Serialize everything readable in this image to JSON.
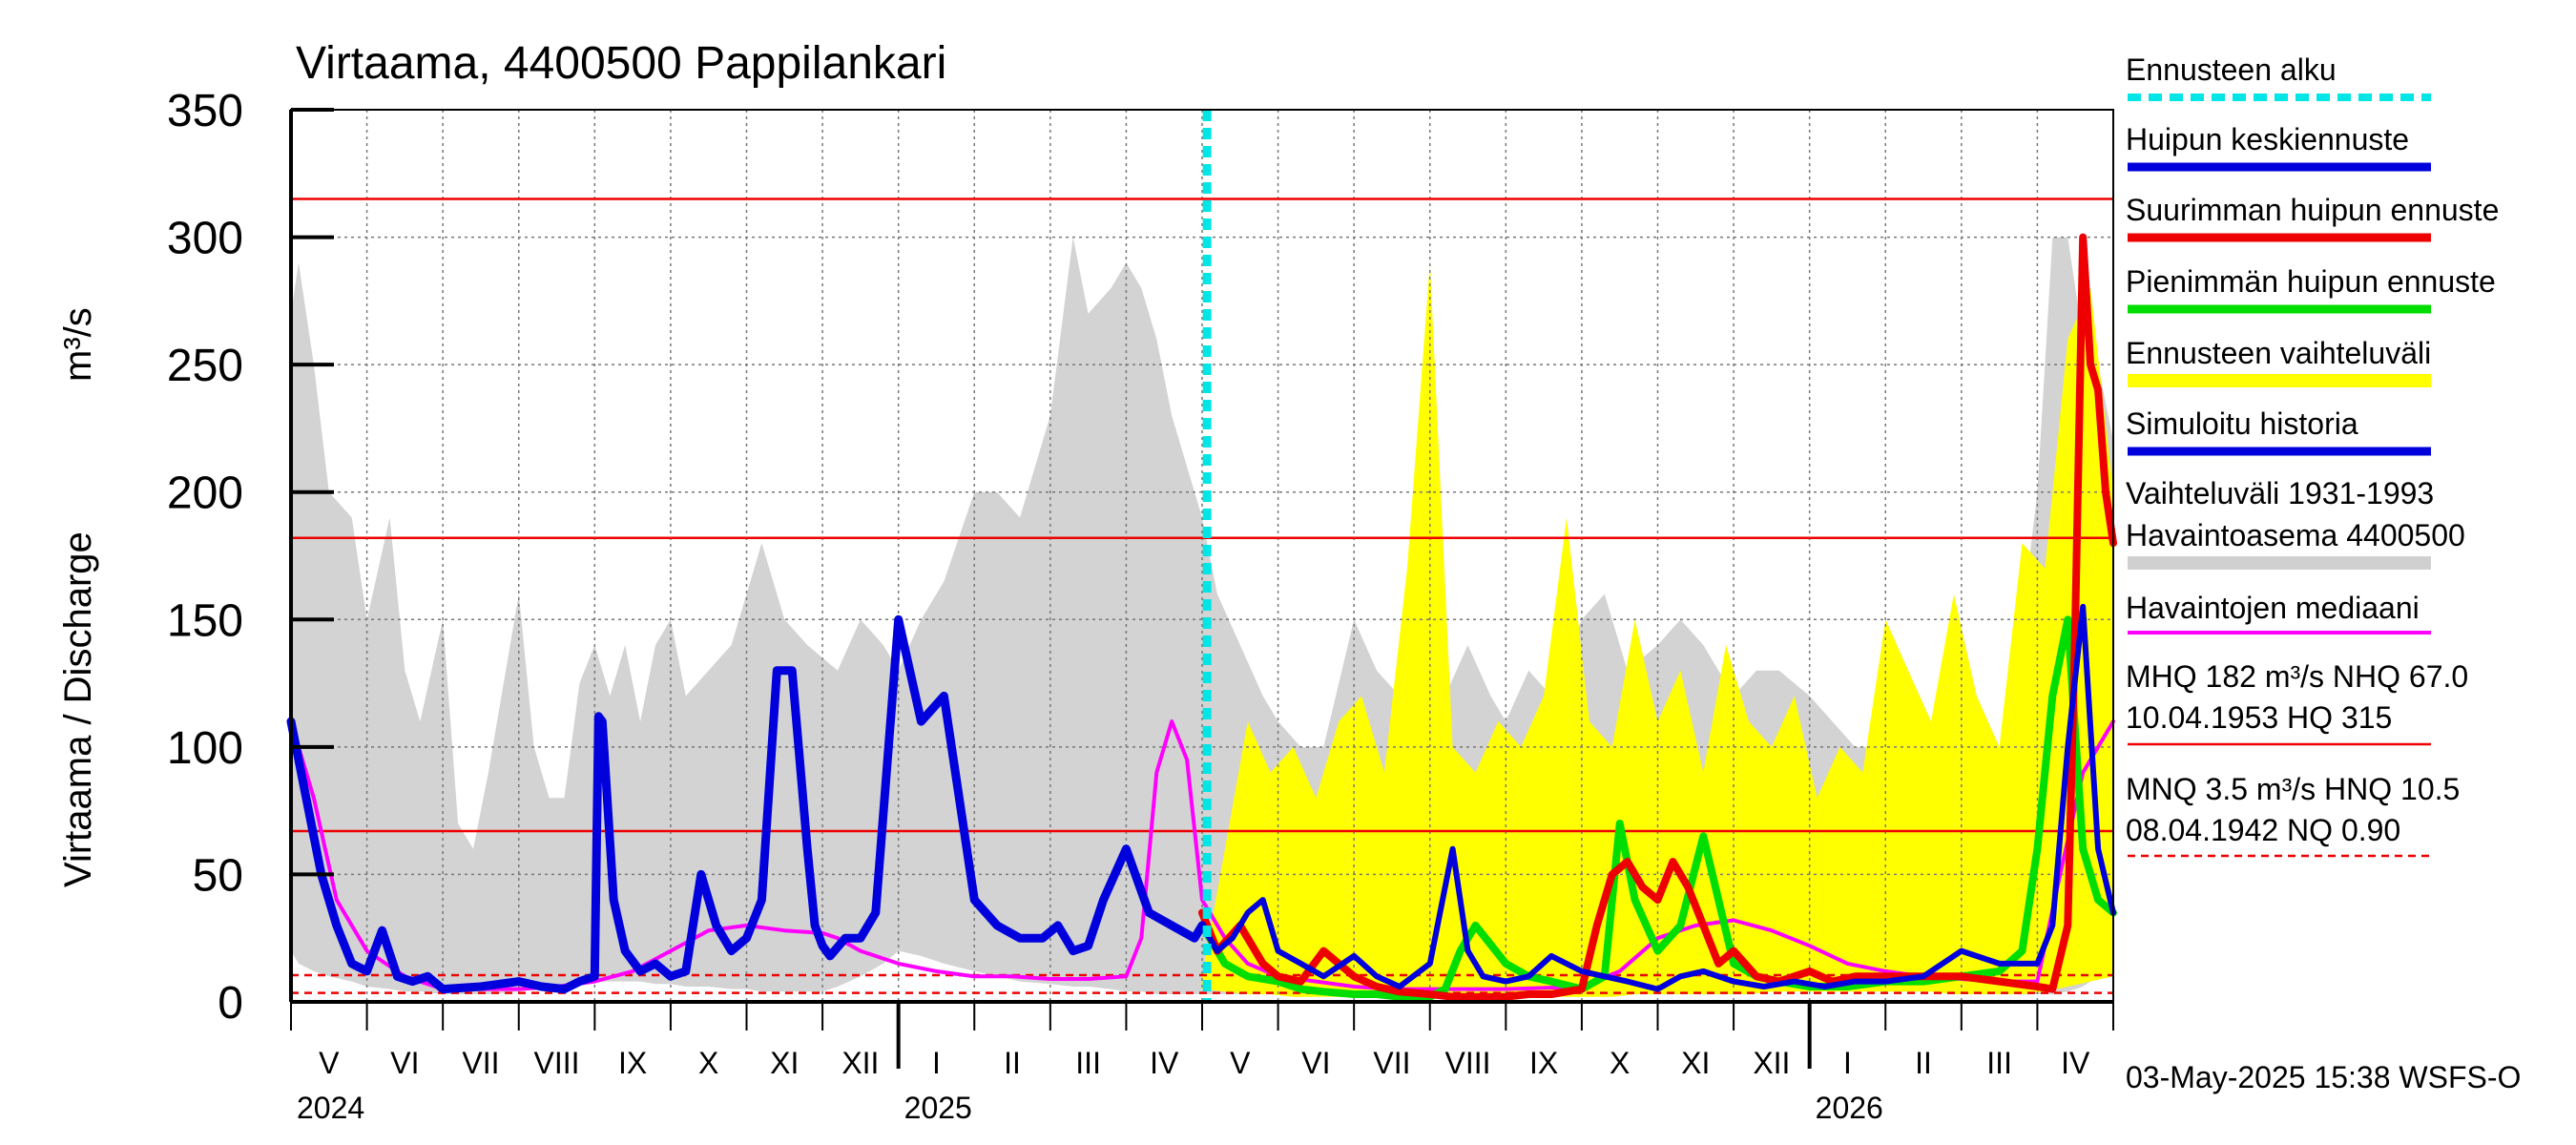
{
  "chart_data": {
    "type": "area",
    "title": "Virtaama, 4400500 Pappilankari",
    "ylabel": "Virtaama / Discharge",
    "yunit": "m³/s",
    "ylim": [
      0,
      350
    ],
    "yticks": [
      0,
      50,
      100,
      150,
      200,
      250,
      300,
      350
    ],
    "months": [
      "V",
      "VI",
      "VII",
      "VIII",
      "IX",
      "X",
      "XI",
      "XII",
      "I",
      "II",
      "III",
      "IV",
      "V",
      "VI",
      "VII",
      "VIII",
      "IX",
      "X",
      "XI",
      "XII",
      "I",
      "II",
      "III",
      "IV"
    ],
    "years": [
      "2024",
      "2025",
      "2026"
    ],
    "forecast_start": "2025-05-03",
    "grid": true,
    "legend_position": "right",
    "reference_lines": {
      "HQ": 315,
      "MHQ": 182,
      "NHQ": 67.0,
      "HNQ": 10.5,
      "MNQ": 3.5,
      "NQ": 0.9
    },
    "legend": [
      {
        "label": "Ennusteen alku",
        "color": "#00e5e5",
        "style": "dashed"
      },
      {
        "label": "Huipun keskiennuste",
        "color": "#0000dd",
        "style": "solid"
      },
      {
        "label": "Suurimman huipun ennuste",
        "color": "#ee0000",
        "style": "solid"
      },
      {
        "label": "Pienimmän huipun ennuste",
        "color": "#00dd00",
        "style": "solid"
      },
      {
        "label": "Ennusteen vaihteluväli",
        "color": "#ffff00",
        "style": "solid"
      },
      {
        "label": "Simuloitu historia",
        "color": "#0000dd",
        "style": "solid"
      },
      {
        "label": "Vaihteluväli 1931-1993",
        "label2": " Havaintoasema 4400500",
        "color": "#d0d0d0",
        "style": "solid"
      },
      {
        "label": "Havaintojen mediaani",
        "color": "#ff00ff",
        "style": "solid"
      },
      {
        "label": "MHQ  182 m³/s NHQ 67.0",
        "label2": "10.04.1953 HQ  315",
        "color": "#ee0000",
        "style": "solid"
      },
      {
        "label": "MNQ  3.5 m³/s HNQ 10.5",
        "label2": "08.04.1942 NQ 0.90",
        "color": "#ee0000",
        "style": "dashed"
      }
    ],
    "series": {
      "range_hist": {
        "months": [
          0,
          0.1,
          0.3,
          0.5,
          0.8,
          1,
          1.3,
          1.5,
          1.7,
          2,
          2.2,
          2.4,
          2.6,
          3,
          3.2,
          3.4,
          3.6,
          3.8,
          4,
          4.2,
          4.4,
          4.6,
          4.8,
          5,
          5.2,
          5.5,
          5.8,
          6,
          6.2,
          6.5,
          6.8,
          7,
          7.2,
          7.5,
          7.8,
          8,
          8.3,
          8.6,
          9,
          9.3,
          9.6,
          10,
          10.3,
          10.5,
          10.8,
          11,
          11.2,
          11.4,
          11.6,
          11.8,
          12,
          12.2,
          12.5,
          12.8,
          13,
          13.3,
          13.6,
          14,
          14.3,
          14.6,
          15,
          15.2,
          15.5,
          15.8,
          16,
          16.3,
          16.6,
          17,
          17.3,
          17.6,
          18,
          18.3,
          18.6,
          19,
          19.3,
          19.6,
          20,
          20.3,
          20.6,
          21,
          21.3,
          21.6,
          22,
          22.3,
          22.6,
          23,
          23.2,
          23.4,
          23.6,
          23.8,
          24
        ],
        "high": [
          270,
          290,
          250,
          200,
          190,
          150,
          190,
          130,
          110,
          150,
          70,
          60,
          90,
          160,
          100,
          80,
          80,
          125,
          140,
          120,
          140,
          110,
          140,
          150,
          120,
          130,
          140,
          160,
          180,
          150,
          140,
          135,
          130,
          150,
          140,
          130,
          150,
          165,
          200,
          200,
          190,
          230,
          300,
          270,
          280,
          290,
          280,
          260,
          230,
          210,
          190,
          160,
          140,
          120,
          110,
          100,
          100,
          150,
          130,
          120,
          100,
          120,
          140,
          120,
          110,
          130,
          120,
          150,
          160,
          130,
          140,
          150,
          140,
          120,
          130,
          130,
          120,
          110,
          100,
          100,
          90,
          90,
          60,
          80,
          100,
          200,
          300,
          300,
          260,
          250,
          220
        ],
        "low": [
          20,
          15,
          12,
          10,
          8,
          6,
          5,
          4,
          4,
          3,
          3,
          3,
          3,
          4,
          5,
          6,
          6,
          7,
          8,
          8,
          8,
          8,
          7,
          7,
          6,
          6,
          5,
          5,
          4,
          4,
          4,
          4,
          6,
          10,
          15,
          20,
          18,
          15,
          12,
          10,
          8,
          7,
          6,
          6,
          5,
          4,
          4,
          3,
          3,
          3,
          3,
          3,
          3,
          4,
          5,
          6,
          6,
          7,
          8,
          8,
          8,
          8,
          7,
          7,
          6,
          6,
          5,
          5,
          4,
          4,
          4,
          4,
          5,
          6,
          10,
          15,
          15,
          15,
          10,
          10,
          6,
          5,
          4,
          3,
          3,
          3,
          3,
          4,
          6,
          10,
          15
        ]
      },
      "range_forecast": {
        "months": [
          12,
          12.3,
          12.6,
          12.9,
          13.2,
          13.5,
          13.8,
          14.1,
          14.4,
          14.7,
          15,
          15.3,
          15.6,
          15.9,
          16.2,
          16.5,
          16.8,
          17.1,
          17.4,
          17.7,
          18,
          18.3,
          18.6,
          18.9,
          19.2,
          19.5,
          19.8,
          20.1,
          20.4,
          20.7,
          21,
          21.3,
          21.6,
          21.9,
          22.2,
          22.5,
          22.8,
          23.1,
          23.4,
          23.7,
          24
        ],
        "high": [
          10,
          60,
          110,
          90,
          100,
          80,
          110,
          120,
          90,
          170,
          290,
          100,
          90,
          110,
          100,
          120,
          190,
          110,
          100,
          150,
          110,
          130,
          90,
          140,
          110,
          100,
          120,
          80,
          100,
          90,
          150,
          130,
          110,
          160,
          120,
          100,
          180,
          170,
          260,
          280,
          200
        ],
        "low": [
          5,
          4,
          3,
          3,
          2,
          2,
          2,
          2,
          2,
          2,
          2,
          2,
          2,
          2,
          2,
          2,
          2,
          2,
          2,
          3,
          3,
          3,
          3,
          3,
          3,
          4,
          4,
          4,
          4,
          4,
          4,
          4,
          4,
          3,
          3,
          3,
          3,
          4,
          6,
          8,
          10
        ]
      },
      "simulated_history": {
        "months": [
          0,
          0.2,
          0.4,
          0.6,
          0.8,
          1,
          1.2,
          1.4,
          1.6,
          1.8,
          2,
          2.5,
          3,
          3.3,
          3.6,
          3.8,
          4,
          4.05,
          4.1,
          4.25,
          4.4,
          4.6,
          4.8,
          5,
          5.2,
          5.4,
          5.6,
          5.8,
          6,
          6.2,
          6.4,
          6.6,
          6.8,
          6.9,
          7,
          7.1,
          7.3,
          7.5,
          7.7,
          8,
          8.3,
          8.6,
          9,
          9.3,
          9.6,
          9.9,
          10.1,
          10.3,
          10.5,
          10.7,
          11,
          11.3,
          11.6,
          11.9,
          12
        ],
        "values": [
          110,
          80,
          50,
          30,
          15,
          12,
          28,
          10,
          8,
          10,
          5,
          6,
          8,
          6,
          5,
          8,
          10,
          112,
          110,
          40,
          20,
          12,
          15,
          10,
          12,
          50,
          30,
          20,
          25,
          40,
          130,
          130,
          60,
          30,
          22,
          18,
          25,
          25,
          35,
          150,
          110,
          120,
          40,
          30,
          25,
          25,
          30,
          20,
          22,
          40,
          60,
          35,
          30,
          25,
          30
        ]
      },
      "median": {
        "months": [
          0,
          0.3,
          0.6,
          1,
          1.5,
          2,
          3,
          3.5,
          4,
          4.5,
          5,
          5.5,
          6,
          6.5,
          7,
          7.2,
          7.5,
          8,
          8.5,
          9,
          9.5,
          10,
          10.5,
          11,
          11.2,
          11.4,
          11.6,
          11.8,
          12,
          12.3,
          12.6,
          13,
          13.5,
          14,
          14.5,
          15,
          16,
          17,
          17.5,
          18,
          18.5,
          19,
          19.5,
          20,
          20.5,
          21,
          21.5,
          22,
          22.5,
          23,
          23.3,
          23.6,
          24
        ],
        "values": [
          110,
          80,
          40,
          20,
          10,
          5,
          5,
          6,
          8,
          12,
          20,
          28,
          30,
          28,
          27,
          25,
          20,
          15,
          12,
          10,
          10,
          9,
          9,
          10,
          25,
          90,
          110,
          95,
          40,
          25,
          15,
          10,
          8,
          6,
          5,
          5,
          5,
          6,
          12,
          25,
          30,
          32,
          28,
          22,
          15,
          12,
          10,
          9,
          8,
          8,
          50,
          90,
          110
        ]
      },
      "forecast_mean": {
        "months": [
          12,
          12.2,
          12.4,
          12.6,
          12.8,
          13,
          13.3,
          13.6,
          14,
          14.3,
          14.6,
          15,
          15.3,
          15.5,
          15.7,
          16,
          16.3,
          16.6,
          17,
          17.3,
          17.6,
          18,
          18.3,
          18.6,
          19,
          19.4,
          19.8,
          20.2,
          20.6,
          21,
          21.5,
          22,
          22.5,
          23,
          23.2,
          23.4,
          23.6,
          23.8,
          24
        ],
        "values": [
          30,
          20,
          25,
          35,
          40,
          20,
          15,
          10,
          18,
          10,
          6,
          15,
          60,
          20,
          10,
          8,
          10,
          18,
          12,
          10,
          8,
          5,
          10,
          12,
          8,
          6,
          8,
          6,
          8,
          8,
          10,
          20,
          15,
          15,
          30,
          100,
          155,
          60,
          35
        ]
      },
      "forecast_max": {
        "months": [
          12,
          12.2,
          12.5,
          12.8,
          13,
          13.3,
          13.6,
          14,
          14.3,
          14.6,
          15,
          15.3,
          15.6,
          16,
          16.3,
          16.6,
          17,
          17.2,
          17.4,
          17.6,
          17.8,
          18,
          18.2,
          18.4,
          18.6,
          18.8,
          19,
          19.3,
          19.6,
          20,
          20.3,
          20.6,
          21,
          21.5,
          22,
          22.5,
          23,
          23.2,
          23.4,
          23.5,
          23.6,
          23.7,
          23.8,
          23.9,
          24
        ],
        "values": [
          35,
          20,
          30,
          15,
          10,
          8,
          20,
          10,
          6,
          4,
          3,
          2,
          2,
          2,
          3,
          3,
          5,
          30,
          50,
          55,
          45,
          40,
          55,
          45,
          30,
          15,
          20,
          10,
          8,
          12,
          8,
          10,
          10,
          10,
          10,
          8,
          6,
          5,
          30,
          150,
          300,
          250,
          240,
          200,
          180
        ]
      },
      "forecast_min": {
        "months": [
          12,
          12.3,
          12.6,
          13,
          13.3,
          13.6,
          14,
          14.3,
          14.6,
          15,
          15.2,
          15.4,
          15.6,
          16,
          16.3,
          16.6,
          17,
          17.3,
          17.5,
          17.7,
          18,
          18.3,
          18.6,
          18.8,
          19,
          19.3,
          19.6,
          20,
          20.5,
          21,
          21.5,
          22,
          22.5,
          22.8,
          23,
          23.2,
          23.4,
          23.6,
          23.8,
          24
        ],
        "values": [
          30,
          15,
          10,
          8,
          5,
          4,
          3,
          3,
          2,
          2,
          5,
          20,
          30,
          15,
          10,
          8,
          5,
          10,
          70,
          40,
          20,
          30,
          65,
          40,
          15,
          10,
          8,
          6,
          6,
          8,
          8,
          10,
          12,
          20,
          60,
          120,
          150,
          60,
          40,
          35
        ]
      }
    }
  },
  "footer": {
    "timestamp": "03-May-2025 15:38 WSFS-O"
  }
}
